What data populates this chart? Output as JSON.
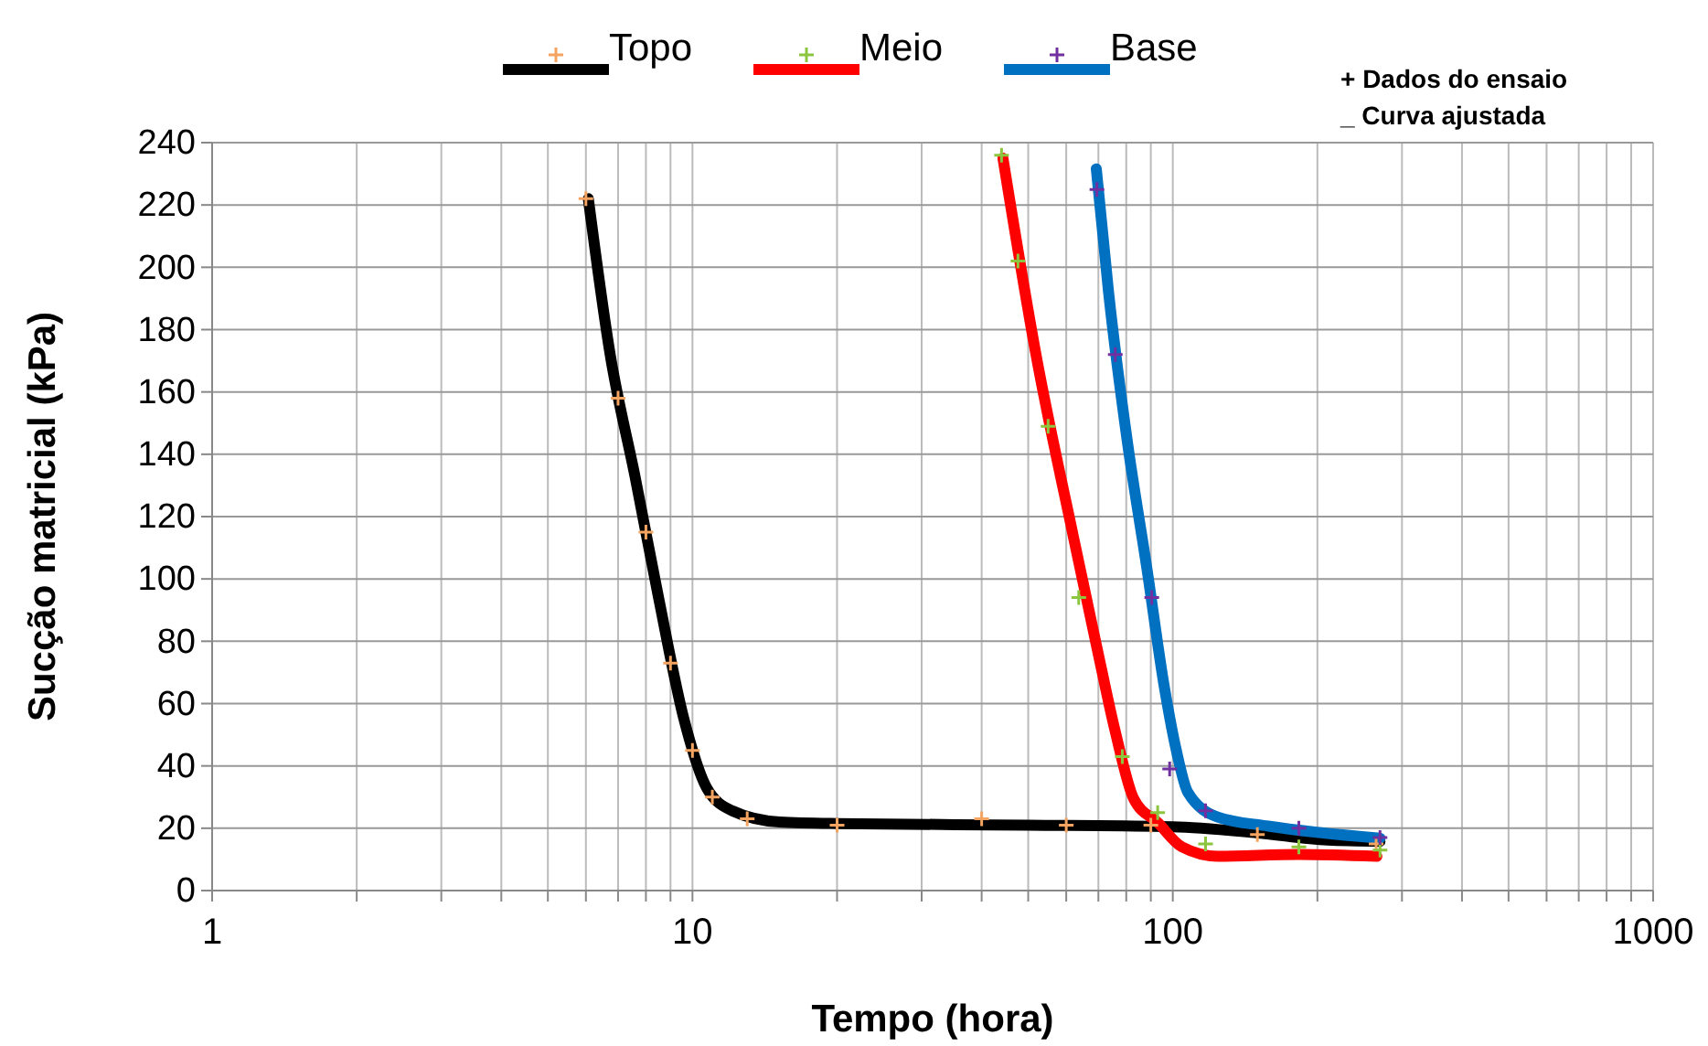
{
  "chart_data": {
    "type": "line",
    "xlabel": "Tempo (hora)",
    "ylabel": "Sucção matricial (kPa)",
    "annotations": [
      "+ Dados do ensaio",
      "_ Curva ajustada"
    ],
    "log": "x",
    "grid": true,
    "legend": "top",
    "xlim": [
      1,
      1000
    ],
    "xticks": [
      1,
      {
        "value": 2,
        "label": null
      },
      {
        "value": 3,
        "label": null
      },
      {
        "value": 4,
        "label": null
      },
      {
        "value": 5,
        "label": null
      },
      {
        "value": 6,
        "label": null
      },
      {
        "value": 7,
        "label": null
      },
      {
        "value": 8,
        "label": null
      },
      {
        "value": 9,
        "label": null
      },
      10,
      {
        "value": 20,
        "label": null
      },
      {
        "value": 30,
        "label": null
      },
      {
        "value": 40,
        "label": null
      },
      {
        "value": 50,
        "label": null
      },
      {
        "value": 60,
        "label": null
      },
      {
        "value": 70,
        "label": null
      },
      {
        "value": 80,
        "label": null
      },
      {
        "value": 90,
        "label": null
      },
      100,
      {
        "value": 200,
        "label": null
      },
      {
        "value": 300,
        "label": null
      },
      {
        "value": 400,
        "label": null
      },
      {
        "value": 500,
        "label": null
      },
      {
        "value": 600,
        "label": null
      },
      {
        "value": 700,
        "label": null
      },
      {
        "value": 800,
        "label": null
      },
      {
        "value": 900,
        "label": null
      },
      1000
    ],
    "ylim": [
      0,
      240
    ],
    "yticks": [
      0,
      20,
      40,
      60,
      80,
      100,
      120,
      140,
      160,
      180,
      200,
      220,
      240
    ],
    "series": [
      {
        "type": "scatter",
        "marker": "cross",
        "color": "#f4a460",
        "x": [
          6,
          7,
          8,
          9,
          10,
          11,
          13,
          20,
          40,
          60,
          90,
          150,
          265
        ],
        "values": [
          222,
          158,
          115,
          73,
          45,
          30,
          23,
          21,
          23,
          21,
          21,
          18,
          15
        ]
      },
      {
        "type": "scatter",
        "marker": "cross",
        "color": "#8cc63f",
        "x": [
          44,
          47.6,
          55,
          63.7,
          78.5,
          93,
          117,
          183,
          270
        ],
        "values": [
          236,
          202,
          149,
          94,
          43,
          25,
          15,
          14,
          13
        ]
      },
      {
        "type": "scatter",
        "marker": "cross",
        "color": "#7030a0",
        "x": [
          69.5,
          75.9,
          90.4,
          98.5,
          117,
          183,
          270
        ],
        "values": [
          225,
          172,
          94,
          39,
          25.6,
          20,
          17
        ]
      },
      {
        "name": "Topo",
        "color": "#000000",
        "x": [
          6.07,
          6.74,
          7.59,
          8.5,
          9.6,
          10.7,
          12.1,
          15.2,
          20,
          50,
          100,
          150,
          210,
          270
        ],
        "values": [
          222,
          172,
          133,
          94,
          55,
          33,
          25.6,
          22,
          21.5,
          21,
          20.5,
          18.5,
          16.2,
          15.8
        ]
      },
      {
        "name": "Meio",
        "color": "#ff0000",
        "x": [
          44.3,
          51.9,
          62,
          69.5,
          75.9,
          82.9,
          93.2,
          104.5,
          124,
          183,
          266
        ],
        "values": [
          235,
          172,
          114,
          78,
          51,
          29.5,
          21.7,
          14,
          11,
          11.6,
          11
        ]
      },
      {
        "name": "Base",
        "color": "#0070c0",
        "x": [
          69.3,
          73.5,
          80.6,
          88.2,
          96.1,
          101.7,
          107.5,
          124,
          158,
          270
        ],
        "values": [
          231.6,
          192,
          143,
          104,
          65,
          45,
          31.5,
          23.6,
          20.7,
          16.8
        ]
      }
    ]
  }
}
